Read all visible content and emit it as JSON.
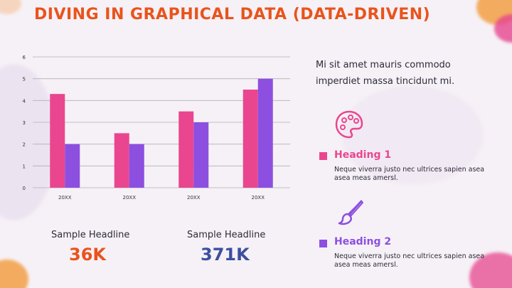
{
  "title": "DIVING IN GRAPHICAL DATA (DATA-DRIVEN)",
  "colors": {
    "title": "#e8541c",
    "series1": "#e9468f",
    "series2": "#8c4fe0",
    "stat1": "#e8541c",
    "stat2": "#3c4fa0",
    "grid": "#b0b0b6"
  },
  "chart_data": {
    "type": "bar",
    "categories": [
      "20XX",
      "20XX",
      "20XX",
      "20XX"
    ],
    "series": [
      {
        "values": [
          4.3,
          2.5,
          3.5,
          4.5
        ]
      },
      {
        "values": [
          2.0,
          2.0,
          3.0,
          5.0
        ]
      }
    ],
    "yticks": [
      "0",
      "1",
      "2",
      "3",
      "4",
      "5",
      "6"
    ],
    "ylim": [
      0,
      6
    ],
    "grid": true,
    "title": "",
    "xlabel": "",
    "ylabel": ""
  },
  "stats": [
    {
      "label": "Sample Headline",
      "value": "36K"
    },
    {
      "label": "Sample Headline",
      "value": "371K"
    }
  ],
  "intro": "Mi sit amet mauris commodo imperdiet massa tincidunt mi.",
  "items": [
    {
      "icon": "palette-icon",
      "heading": "Heading 1",
      "text": "Neque viverra justo nec ultrices sapien asea asea meas amersl."
    },
    {
      "icon": "paintbrush-icon",
      "heading": "Heading 2",
      "text": "Neque viverra justo nec ultrices sapien asea asea meas amersl."
    }
  ]
}
